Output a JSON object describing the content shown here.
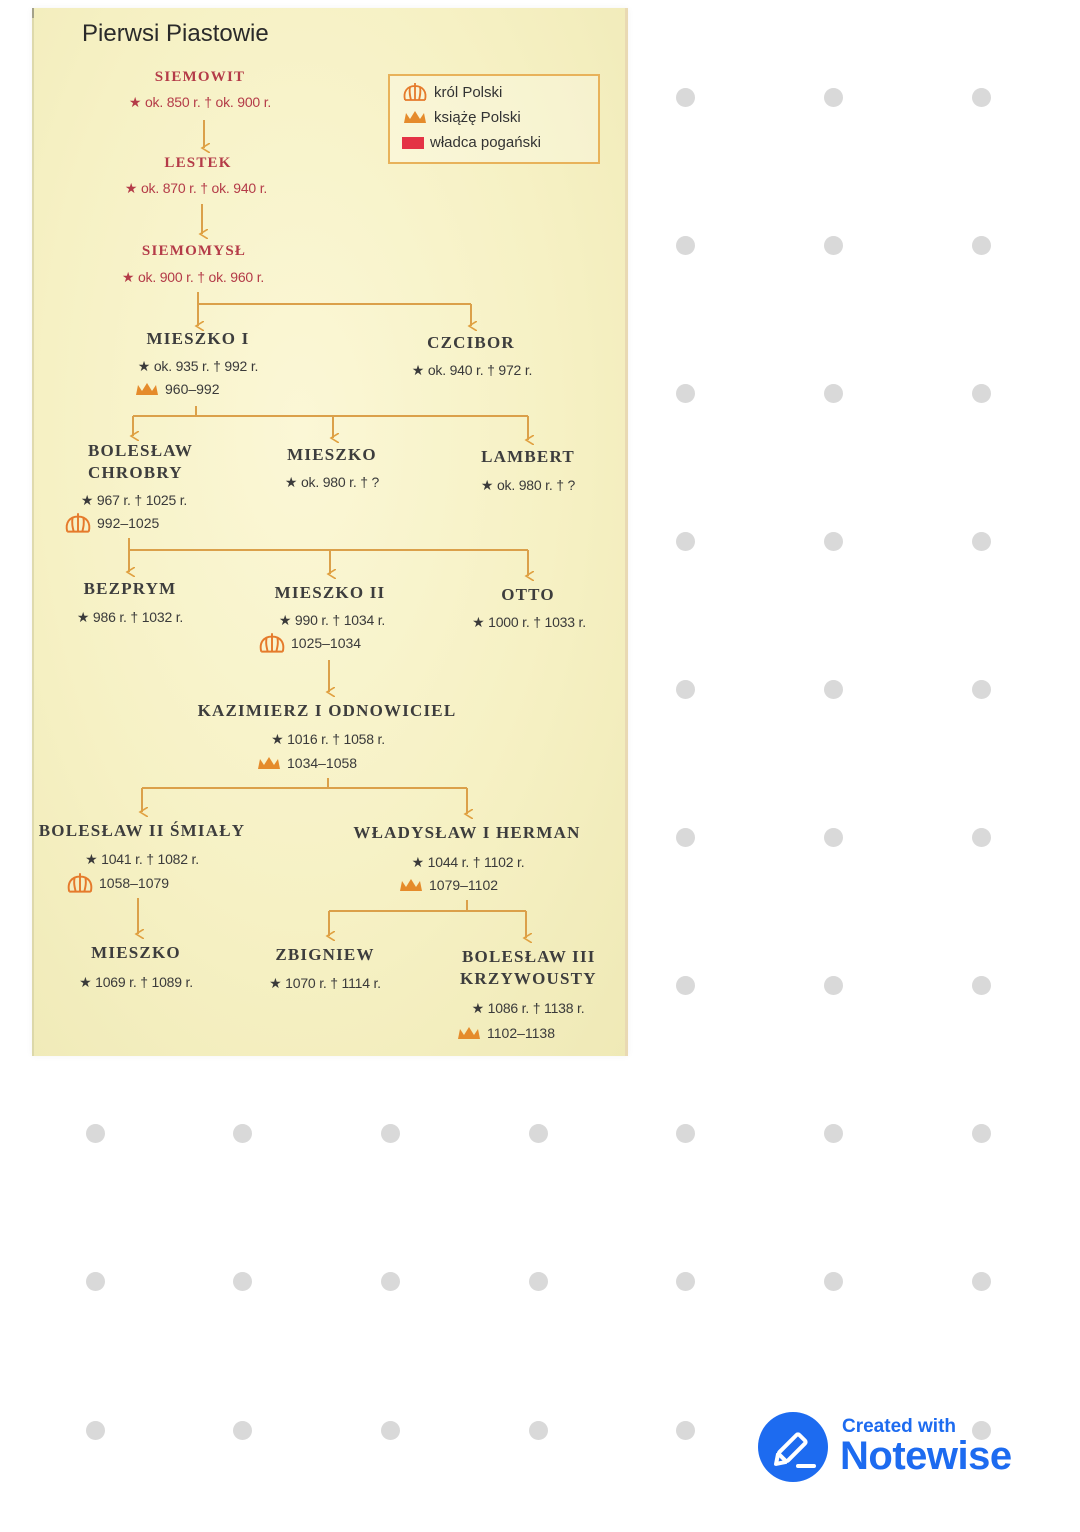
{
  "title": "Pierwsi Piastowie",
  "legend": {
    "king": "król Polski",
    "duke": "książę Polski",
    "pagan": "władca pogański"
  },
  "people": {
    "siemowit": {
      "name": "SIEMOWIT",
      "dates": "★ ok. 850 r.  † ok. 900 r."
    },
    "lestek": {
      "name": "LESTEK",
      "dates": "★ ok. 870 r.  † ok. 940 r."
    },
    "siemomysl": {
      "name": "SIEMOMYSŁ",
      "dates": "★ ok. 900 r.  † ok. 960 r."
    },
    "mieszko1": {
      "name": "MIESZKO I",
      "dates": "★ ok. 935 r.  † 992 r.",
      "reign": "960–992"
    },
    "czcibor": {
      "name": "CZCIBOR",
      "dates": "★ ok. 940 r.  † 972 r."
    },
    "boleslaw_chrobry": {
      "name_line1": "BOLESŁAW",
      "name_line2": "CHROBRY",
      "dates": "★ 967 r.  † 1025 r.",
      "reign": "992–1025"
    },
    "mieszko_b": {
      "name": "MIESZKO",
      "dates": "★ ok. 980 r.  † ?"
    },
    "lambert": {
      "name": "LAMBERT",
      "dates": "★ ok. 980 r.  † ?"
    },
    "bezprym": {
      "name": "BEZPRYM",
      "dates": "★ 986 r.  † 1032 r."
    },
    "mieszko2": {
      "name": "MIESZKO II",
      "dates": "★ 990 r.  † 1034 r.",
      "reign": "1025–1034"
    },
    "otto": {
      "name": "OTTO",
      "dates": "★ 1000 r.  † 1033 r."
    },
    "kazimierz": {
      "name": "KAZIMIERZ I ODNOWICIEL",
      "dates": "★ 1016 r.  † 1058 r.",
      "reign": "1034–1058"
    },
    "boleslaw2": {
      "name": "BOLESŁAW II ŚMIAŁY",
      "dates": "★ 1041 r.  † 1082 r.",
      "reign": "1058–1079"
    },
    "wladyslaw": {
      "name": "WŁADYSŁAW I HERMAN",
      "dates": "★ 1044 r.  † 1102 r.",
      "reign": "1079–1102"
    },
    "mieszko_c": {
      "name": "MIESZKO",
      "dates": "★ 1069 r.  † 1089 r."
    },
    "zbigniew": {
      "name": "ZBIGNIEW",
      "dates": "★ 1070 r.  † 1114 r."
    },
    "boleslaw3": {
      "name_line1": "BOLESŁAW III",
      "name_line2": "KRZYWOUSTY",
      "dates": "★ 1086 r.  † 1138 r.",
      "reign": "1102–1138"
    }
  },
  "colors": {
    "accent": "#e8a83a",
    "pagan_red": "#b43b48",
    "brand": "#1d6bf0"
  },
  "branding": {
    "created_with": "Created with",
    "app_name": "Notewise"
  }
}
